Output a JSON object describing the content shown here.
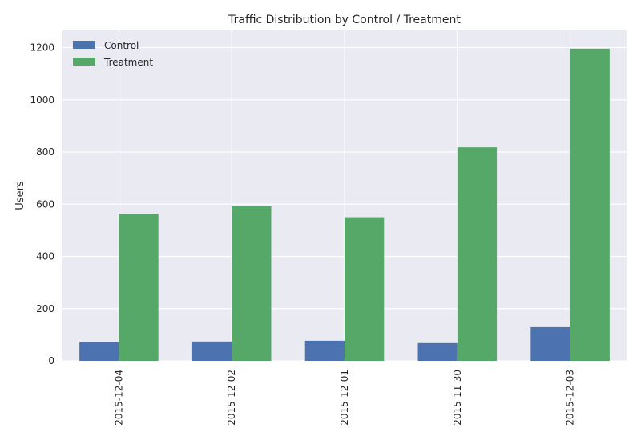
{
  "chart_data": {
    "type": "bar",
    "title": "Traffic Distribution by Control / Treatment",
    "xlabel": "",
    "ylabel": "Users",
    "categories": [
      "2015-12-04",
      "2015-12-02",
      "2015-12-01",
      "2015-11-30",
      "2015-12-03"
    ],
    "series": [
      {
        "name": "Control",
        "values": [
          71,
          74,
          77,
          68,
          129
        ],
        "color": "#4c72b0"
      },
      {
        "name": "Treatment",
        "values": [
          563,
          592,
          550,
          818,
          1196
        ],
        "color": "#55a868"
      }
    ],
    "ylim": [
      0,
      1200
    ],
    "yticks": [
      0,
      200,
      400,
      600,
      800,
      1000,
      1200
    ],
    "grid": true,
    "legend_position": "top-left",
    "style": {
      "plot_background": "#eaeaf2",
      "grid_color": "#ffffff"
    }
  }
}
